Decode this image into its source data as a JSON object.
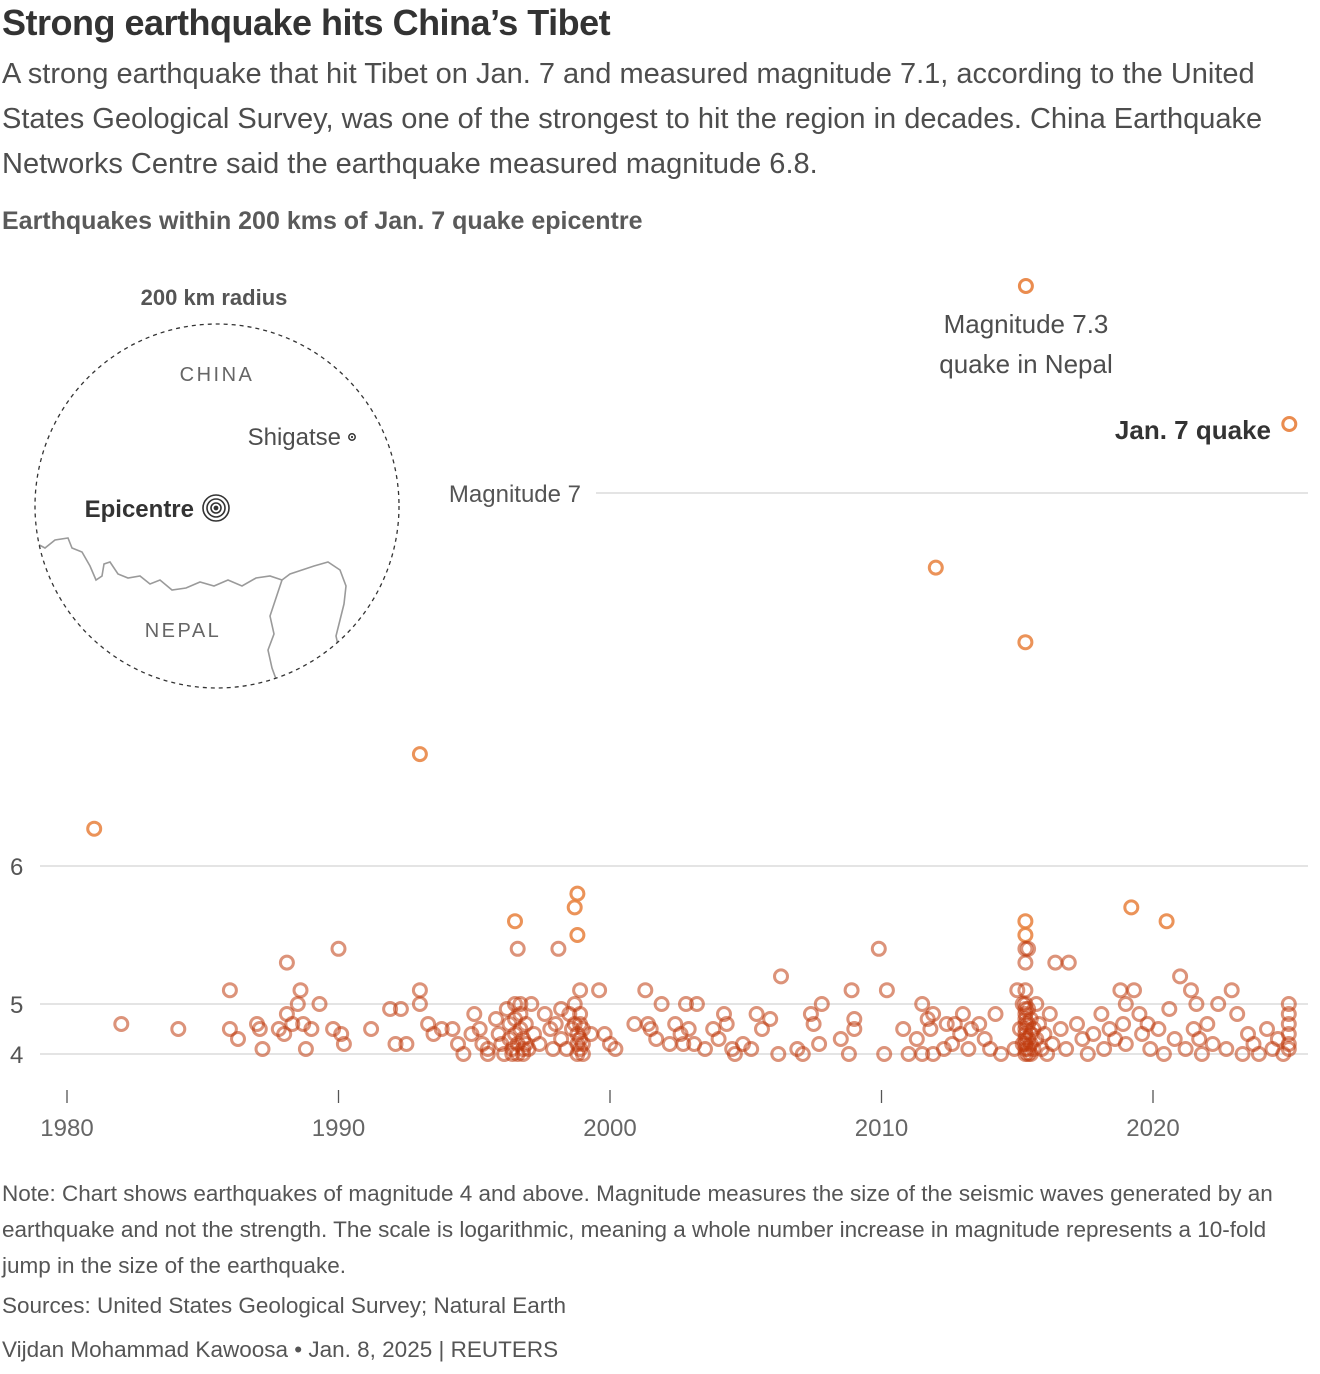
{
  "title": "Strong earthquake hits China’s Tibet",
  "subtitle": "A strong earthquake that hit Tibet on Jan. 7 and measured magnitude 7.1, according to the United States Geological Survey, was one of the strongest to hit the region in decades. China Earthquake Networks Centre said the earthquake measured magnitude 6.8.",
  "chart_heading": "Earthquakes within 200 kms of Jan. 7 quake epicentre",
  "inset_map": {
    "title": "200 km radius",
    "labels": {
      "china": "CHINA",
      "nepal": "NEPAL",
      "shigatse": "Shigatse",
      "epicentre": "Epicentre"
    },
    "border_color": "#9a9a9a",
    "circle_style": "dashed"
  },
  "annotations": {
    "magnitude_7": "Magnitude 7",
    "nepal_line1": "Magnitude 7.3",
    "nepal_line2": "quake in Nepal",
    "jan7": "Jan. 7 quake"
  },
  "colors": {
    "point": "#e8803c",
    "point_dark": "#c03a0c",
    "grid": "#d4d4d4",
    "text": "#4d4d4d"
  },
  "chart_data": {
    "type": "scatter",
    "title": "Earthquakes within 200 kms of Jan. 7 quake epicentre",
    "xlabel": "",
    "ylabel": "",
    "x_unit": "year",
    "y_scale": "log",
    "xlim": [
      1979.5,
      2025.5
    ],
    "ylim": [
      3.9,
      7.5
    ],
    "x_ticks": [
      1980,
      1990,
      2000,
      2010,
      2020
    ],
    "y_ticks": [
      4,
      5,
      6
    ],
    "y_reference": 7,
    "grid": "horizontal",
    "highlighted": [
      {
        "x": 2015.32,
        "y": 7.3,
        "label": "Magnitude 7.3 quake in Nepal"
      },
      {
        "x": 2025.02,
        "y": 7.1,
        "label": "Jan. 7 quake"
      }
    ],
    "points": [
      [
        1981.0,
        6.1
      ],
      [
        1982.0,
        4.6
      ],
      [
        1984.1,
        4.5
      ],
      [
        1986.0,
        5.1
      ],
      [
        1986.0,
        4.5
      ],
      [
        1986.3,
        4.3
      ],
      [
        1987.0,
        4.6
      ],
      [
        1987.1,
        4.5
      ],
      [
        1987.2,
        4.1
      ],
      [
        1987.8,
        4.5
      ],
      [
        1988.0,
        4.4
      ],
      [
        1988.1,
        4.8
      ],
      [
        1988.1,
        5.3
      ],
      [
        1988.3,
        4.6
      ],
      [
        1988.5,
        5.0
      ],
      [
        1988.6,
        5.1
      ],
      [
        1988.7,
        4.6
      ],
      [
        1988.8,
        4.1
      ],
      [
        1989.0,
        4.5
      ],
      [
        1989.3,
        5.0
      ],
      [
        1989.8,
        4.5
      ],
      [
        1990.0,
        5.4
      ],
      [
        1990.1,
        4.4
      ],
      [
        1990.2,
        4.2
      ],
      [
        1991.2,
        4.5
      ],
      [
        1991.9,
        4.9
      ],
      [
        1992.1,
        4.2
      ],
      [
        1992.3,
        4.9
      ],
      [
        1992.5,
        4.2
      ],
      [
        1993.0,
        6.3
      ],
      [
        1993.0,
        5.1
      ],
      [
        1993.0,
        5.0
      ],
      [
        1993.3,
        4.6
      ],
      [
        1993.5,
        4.4
      ],
      [
        1993.8,
        4.5
      ],
      [
        1994.2,
        4.5
      ],
      [
        1994.4,
        4.2
      ],
      [
        1994.6,
        4.0
      ],
      [
        1994.9,
        4.4
      ],
      [
        1995.0,
        4.8
      ],
      [
        1995.2,
        4.5
      ],
      [
        1995.3,
        4.2
      ],
      [
        1995.5,
        4.1
      ],
      [
        1995.5,
        4.0
      ],
      [
        1995.8,
        4.7
      ],
      [
        1995.9,
        4.4
      ],
      [
        1996.0,
        4.2
      ],
      [
        1996.1,
        4.0
      ],
      [
        1996.2,
        4.9
      ],
      [
        1996.3,
        4.6
      ],
      [
        1996.3,
        4.3
      ],
      [
        1996.4,
        4.1
      ],
      [
        1996.4,
        4.0
      ],
      [
        1996.5,
        5.6
      ],
      [
        1996.5,
        5.0
      ],
      [
        1996.5,
        4.7
      ],
      [
        1996.5,
        4.4
      ],
      [
        1996.6,
        5.4
      ],
      [
        1996.6,
        4.2
      ],
      [
        1996.6,
        4.0
      ],
      [
        1996.7,
        5.0
      ],
      [
        1996.7,
        4.8
      ],
      [
        1996.7,
        4.5
      ],
      [
        1996.8,
        4.3
      ],
      [
        1996.8,
        4.1
      ],
      [
        1996.8,
        4.0
      ],
      [
        1996.9,
        4.6
      ],
      [
        1996.9,
        4.2
      ],
      [
        1997.0,
        4.1
      ],
      [
        1997.1,
        5.0
      ],
      [
        1997.2,
        4.4
      ],
      [
        1997.4,
        4.2
      ],
      [
        1997.6,
        4.8
      ],
      [
        1997.8,
        4.5
      ],
      [
        1997.9,
        4.1
      ],
      [
        1998.0,
        4.6
      ],
      [
        1998.1,
        5.4
      ],
      [
        1998.2,
        4.9
      ],
      [
        1998.2,
        4.3
      ],
      [
        1998.4,
        4.1
      ],
      [
        1998.5,
        4.8
      ],
      [
        1998.6,
        4.5
      ],
      [
        1998.7,
        5.7
      ],
      [
        1998.7,
        5.0
      ],
      [
        1998.7,
        4.6
      ],
      [
        1998.8,
        5.8
      ],
      [
        1998.8,
        5.5
      ],
      [
        1998.8,
        4.4
      ],
      [
        1998.8,
        4.2
      ],
      [
        1998.8,
        4.0
      ],
      [
        1998.9,
        5.1
      ],
      [
        1998.9,
        4.8
      ],
      [
        1998.9,
        4.6
      ],
      [
        1998.9,
        4.3
      ],
      [
        1998.9,
        4.1
      ],
      [
        1999.0,
        4.5
      ],
      [
        1999.0,
        4.2
      ],
      [
        1999.0,
        4.0
      ],
      [
        1999.3,
        4.4
      ],
      [
        1999.6,
        5.1
      ],
      [
        1999.8,
        4.4
      ],
      [
        2000.0,
        4.2
      ],
      [
        2000.2,
        4.1
      ],
      [
        2000.9,
        4.6
      ],
      [
        2001.3,
        5.1
      ],
      [
        2001.4,
        4.6
      ],
      [
        2001.5,
        4.5
      ],
      [
        2001.7,
        4.3
      ],
      [
        2001.9,
        5.0
      ],
      [
        2002.2,
        4.2
      ],
      [
        2002.4,
        4.6
      ],
      [
        2002.6,
        4.4
      ],
      [
        2002.7,
        4.2
      ],
      [
        2002.8,
        5.0
      ],
      [
        2002.9,
        4.5
      ],
      [
        2003.1,
        4.2
      ],
      [
        2003.2,
        5.0
      ],
      [
        2003.5,
        4.1
      ],
      [
        2003.8,
        4.5
      ],
      [
        2004.0,
        4.3
      ],
      [
        2004.2,
        4.8
      ],
      [
        2004.3,
        4.6
      ],
      [
        2004.5,
        4.1
      ],
      [
        2004.6,
        4.0
      ],
      [
        2004.9,
        4.2
      ],
      [
        2005.2,
        4.1
      ],
      [
        2005.4,
        4.8
      ],
      [
        2005.6,
        4.5
      ],
      [
        2005.9,
        4.7
      ],
      [
        2006.2,
        4.0
      ],
      [
        2006.3,
        5.2
      ],
      [
        2006.9,
        4.1
      ],
      [
        2007.1,
        4.0
      ],
      [
        2007.4,
        4.8
      ],
      [
        2007.5,
        4.6
      ],
      [
        2007.7,
        4.2
      ],
      [
        2007.8,
        5.0
      ],
      [
        2008.5,
        4.3
      ],
      [
        2008.8,
        4.0
      ],
      [
        2008.9,
        5.1
      ],
      [
        2009.0,
        4.7
      ],
      [
        2009.0,
        4.5
      ],
      [
        2009.9,
        5.4
      ],
      [
        2010.1,
        4.0
      ],
      [
        2010.2,
        5.1
      ],
      [
        2010.8,
        4.5
      ],
      [
        2011.0,
        4.0
      ],
      [
        2011.3,
        4.3
      ],
      [
        2011.5,
        4.0
      ],
      [
        2011.5,
        5.0
      ],
      [
        2011.7,
        4.7
      ],
      [
        2011.8,
        4.5
      ],
      [
        2011.9,
        4.8
      ],
      [
        2011.9,
        4.0
      ],
      [
        2012.0,
        6.8
      ],
      [
        2012.3,
        4.1
      ],
      [
        2012.4,
        4.6
      ],
      [
        2012.6,
        4.2
      ],
      [
        2012.7,
        4.6
      ],
      [
        2012.9,
        4.4
      ],
      [
        2013.0,
        4.8
      ],
      [
        2013.2,
        4.1
      ],
      [
        2013.3,
        4.5
      ],
      [
        2013.6,
        4.6
      ],
      [
        2013.8,
        4.3
      ],
      [
        2014.0,
        4.1
      ],
      [
        2014.2,
        4.8
      ],
      [
        2014.4,
        4.0
      ],
      [
        2014.9,
        4.1
      ],
      [
        2015.0,
        5.1
      ],
      [
        2015.1,
        4.5
      ],
      [
        2015.2,
        4.2
      ],
      [
        2015.2,
        5.0
      ],
      [
        2015.3,
        6.6
      ],
      [
        2015.32,
        7.3
      ],
      [
        2015.3,
        5.6
      ],
      [
        2015.3,
        5.5
      ],
      [
        2015.3,
        5.4
      ],
      [
        2015.3,
        5.3
      ],
      [
        2015.3,
        5.1
      ],
      [
        2015.3,
        5.0
      ],
      [
        2015.3,
        4.9
      ],
      [
        2015.3,
        4.8
      ],
      [
        2015.3,
        4.7
      ],
      [
        2015.3,
        4.6
      ],
      [
        2015.3,
        4.5
      ],
      [
        2015.3,
        4.4
      ],
      [
        2015.3,
        4.3
      ],
      [
        2015.3,
        4.2
      ],
      [
        2015.3,
        4.1
      ],
      [
        2015.3,
        4.0
      ],
      [
        2015.4,
        5.4
      ],
      [
        2015.4,
        4.9
      ],
      [
        2015.4,
        4.6
      ],
      [
        2015.4,
        4.3
      ],
      [
        2015.4,
        4.1
      ],
      [
        2015.4,
        4.0
      ],
      [
        2015.5,
        4.7
      ],
      [
        2015.5,
        4.4
      ],
      [
        2015.5,
        4.2
      ],
      [
        2015.5,
        4.0
      ],
      [
        2015.6,
        4.5
      ],
      [
        2015.6,
        4.1
      ],
      [
        2015.7,
        5.0
      ],
      [
        2015.7,
        4.3
      ],
      [
        2015.8,
        4.6
      ],
      [
        2015.9,
        4.1
      ],
      [
        2016.0,
        4.4
      ],
      [
        2016.1,
        4.0
      ],
      [
        2016.2,
        4.8
      ],
      [
        2016.3,
        4.2
      ],
      [
        2016.4,
        5.3
      ],
      [
        2016.6,
        4.5
      ],
      [
        2016.8,
        4.1
      ],
      [
        2016.9,
        5.3
      ],
      [
        2017.2,
        4.6
      ],
      [
        2017.4,
        4.3
      ],
      [
        2017.6,
        4.0
      ],
      [
        2017.8,
        4.4
      ],
      [
        2018.1,
        4.8
      ],
      [
        2018.2,
        4.1
      ],
      [
        2018.4,
        4.5
      ],
      [
        2018.6,
        4.3
      ],
      [
        2018.8,
        5.1
      ],
      [
        2018.9,
        4.6
      ],
      [
        2019.0,
        5.0
      ],
      [
        2019.0,
        4.2
      ],
      [
        2019.2,
        5.7
      ],
      [
        2019.3,
        5.1
      ],
      [
        2019.5,
        4.8
      ],
      [
        2019.6,
        4.4
      ],
      [
        2019.8,
        4.6
      ],
      [
        2019.9,
        4.1
      ],
      [
        2020.2,
        4.5
      ],
      [
        2020.4,
        4.0
      ],
      [
        2020.5,
        5.6
      ],
      [
        2020.6,
        4.9
      ],
      [
        2020.8,
        4.3
      ],
      [
        2021.0,
        5.2
      ],
      [
        2021.2,
        4.1
      ],
      [
        2021.4,
        5.1
      ],
      [
        2021.5,
        4.5
      ],
      [
        2021.6,
        5.0
      ],
      [
        2021.7,
        4.3
      ],
      [
        2021.8,
        4.0
      ],
      [
        2022.0,
        4.6
      ],
      [
        2022.2,
        4.2
      ],
      [
        2022.4,
        5.0
      ],
      [
        2022.7,
        4.1
      ],
      [
        2022.9,
        5.1
      ],
      [
        2023.1,
        4.8
      ],
      [
        2023.3,
        4.0
      ],
      [
        2023.5,
        4.4
      ],
      [
        2023.7,
        4.2
      ],
      [
        2023.9,
        4.0
      ],
      [
        2024.2,
        4.5
      ],
      [
        2024.4,
        4.1
      ],
      [
        2024.6,
        4.3
      ],
      [
        2024.8,
        4.0
      ],
      [
        2025.0,
        5.0
      ],
      [
        2025.0,
        4.8
      ],
      [
        2025.0,
        4.6
      ],
      [
        2025.0,
        4.4
      ],
      [
        2025.0,
        4.2
      ],
      [
        2025.0,
        4.1
      ],
      [
        2025.02,
        7.1
      ]
    ]
  },
  "footer": {
    "note": "Note: Chart shows earthquakes of magnitude 4 and above. Magnitude measures the size of the seismic waves generated by an earthquake and not the strength. The scale is logarithmic, meaning a whole number increase in magnitude represents a 10-fold jump in the size of the earthquake.",
    "sources": "Sources: United States Geological Survey; Natural Earth",
    "credit": "Vijdan Mohammad Kawoosa • Jan. 8, 2025 | REUTERS"
  }
}
